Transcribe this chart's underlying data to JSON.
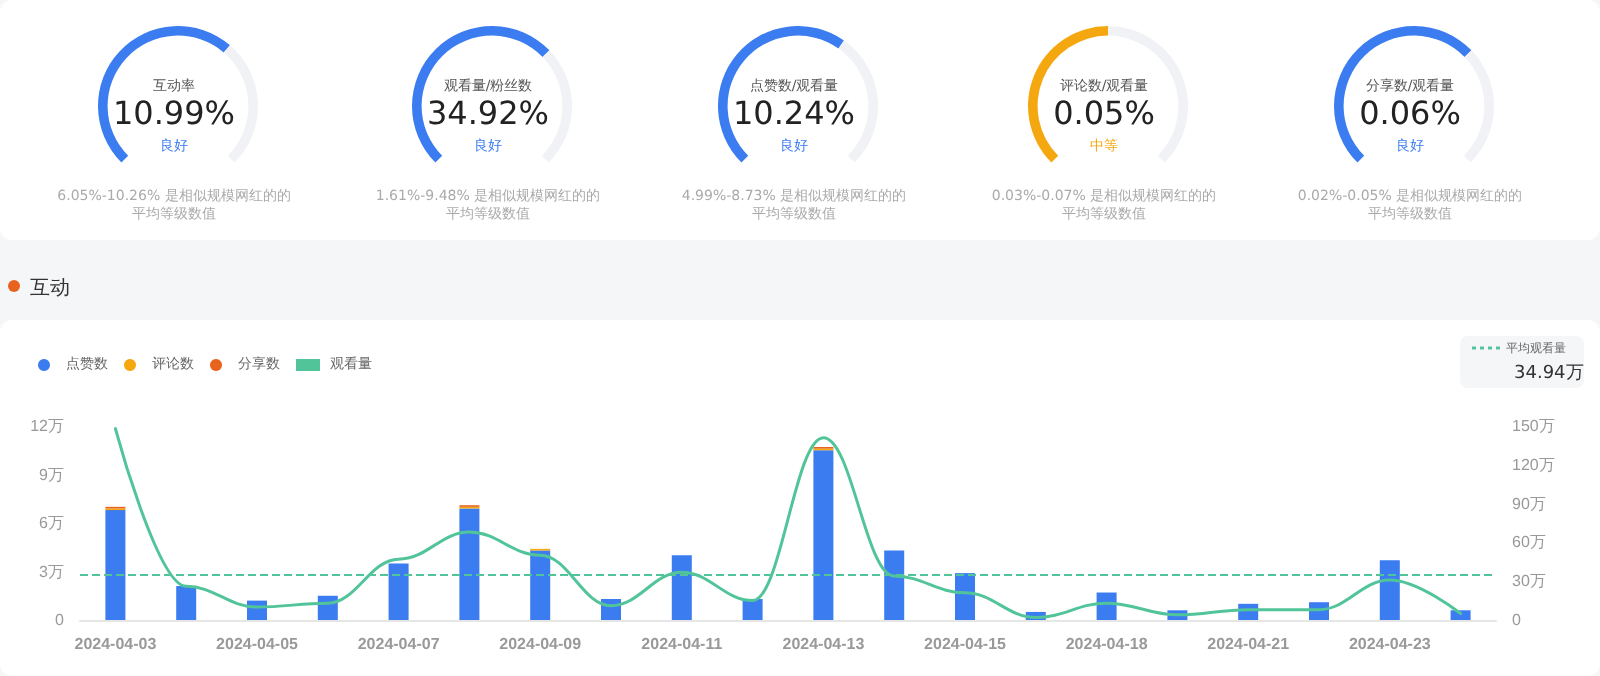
{
  "chart_data": [
    {
      "type": "donut",
      "title": "互动率",
      "subtitle": "10.99%",
      "annotations": [
        "良好",
        "6.05%-10.26% 是相似规模网红的的平均等级数值"
      ],
      "categories": [
        null,
        null
      ],
      "values": [
        65,
        35
      ],
      "colors": [
        "#3b7cf0",
        "#f0f2f5"
      ]
    },
    {
      "type": "donut",
      "title": "观看量/粉丝数",
      "subtitle": "34.92%",
      "annotations": [
        "良好",
        "1.61%-9.48% 是相似规模网红的的平均等级数值"
      ],
      "categories": [
        null,
        null
      ],
      "values": [
        67,
        33
      ],
      "colors": [
        "#3b7cf0",
        "#f0f2f5"
      ]
    },
    {
      "type": "donut",
      "title": "点赞数/观看量",
      "subtitle": "10.24%",
      "annotations": [
        "良好",
        "4.99%-8.73% 是相似规模网红的的平均等级数值"
      ],
      "categories": [
        null,
        null
      ],
      "values": [
        63,
        37
      ],
      "colors": [
        "#3b7cf0",
        "#f0f2f5"
      ]
    },
    {
      "type": "donut",
      "title": "评论数/观看量",
      "subtitle": "0.05%",
      "annotations": [
        "中等",
        "0.03%-0.07% 是相似规模网红的的平均等级数值"
      ],
      "categories": [
        null,
        null
      ],
      "values": [
        50,
        50
      ],
      "colors": [
        "#f5a70f",
        "#f0f2f5"
      ]
    },
    {
      "type": "donut",
      "title": "分享数/观看量",
      "subtitle": "0.06%",
      "annotations": [
        "良好",
        "0.02%-0.05% 是相似规模网红的的平均等级数值"
      ],
      "categories": [
        null,
        null
      ],
      "values": [
        67,
        33
      ],
      "colors": [
        "#3b7cf0",
        "#f0f2f5"
      ]
    },
    {
      "type": "bar",
      "title": "互动",
      "stacked": true,
      "legend": "top left",
      "marker": "none",
      "categories": [
        "2024-04-03",
        null,
        "2024-04-05",
        null,
        "2024-04-07",
        null,
        "2024-04-09",
        null,
        "2024-04-11",
        null,
        "2024-04-13",
        null,
        "2024-04-15",
        null,
        "2024-04-18",
        null,
        "2024-04-21",
        null,
        "2024-04-23",
        null
      ],
      "series": [
        {
          "name": "点赞数",
          "color": "#3b7cf0",
          "values": [
            6.8,
            2.1,
            1.2,
            1.5,
            3.5,
            6.9,
            4.3,
            1.3,
            4,
            1.3,
            10.5,
            4.3,
            2.9,
            0.5,
            1.7,
            0.6,
            1,
            1.1,
            3.7,
            0.6
          ]
        },
        {
          "name": "评论数",
          "color": "#f5a70f",
          "values": [
            0.1,
            0,
            0,
            0,
            0,
            0.1,
            0.1,
            0,
            0,
            0,
            0.1,
            0,
            0,
            0,
            0,
            0,
            0,
            0,
            0,
            0
          ]
        },
        {
          "name": "分享数",
          "color": "#e8641e",
          "values": [
            0.1,
            0,
            0,
            0,
            0,
            0.1,
            0,
            0,
            0,
            0,
            0.1,
            0,
            0,
            0,
            0,
            0,
            0,
            0,
            0,
            0
          ]
        },
        {
          "name": "观看量",
          "type": "line",
          "axis": "y2",
          "color": "#52c49a",
          "values": [
            148,
            26,
            10,
            13,
            47,
            68,
            50,
            11,
            37,
            15,
            141,
            34,
            21,
            2,
            13,
            4,
            8,
            8,
            31,
            5
          ]
        }
      ],
      "ylim": [
        0,
        12
      ],
      "yticks": [
        0,
        {
          "value": 3,
          "label": "3万"
        },
        {
          "value": 6,
          "label": "6万"
        },
        {
          "value": 9,
          "label": "9万"
        },
        {
          "value": 12,
          "label": "12万"
        }
      ],
      "y2lim": [
        0,
        150
      ],
      "y2ticks": [
        0,
        {
          "value": 30,
          "label": "30万"
        },
        {
          "value": 60,
          "label": "60万"
        },
        {
          "value": 90,
          "label": "90万"
        },
        {
          "value": 120,
          "label": "120万"
        },
        {
          "value": 150,
          "label": "150万"
        }
      ],
      "ref_lines": [
        {
          "axis": "y2",
          "value": 34.94,
          "label": "平均观看量",
          "color": "#52c49a",
          "line_style": "dashed"
        }
      ],
      "annotations": [
        "34.94万"
      ]
    }
  ]
}
